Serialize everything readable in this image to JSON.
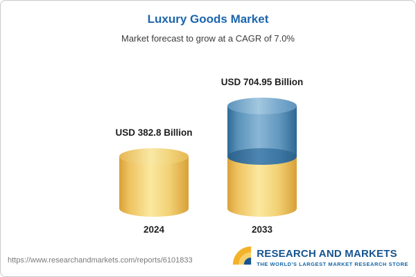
{
  "header": {
    "title": "Luxury Goods Market",
    "subtitle": "Market forecast to grow at a CAGR of 7.0%"
  },
  "chart_data": {
    "type": "bar",
    "style": "3d-cylinder",
    "title": "Luxury Goods Market",
    "subtitle": "Market forecast to grow at a CAGR of 7.0%",
    "unit": "USD Billion",
    "categories": [
      "2024",
      "2033"
    ],
    "values": [
      382.8,
      704.95
    ],
    "bars": [
      {
        "year": "2024",
        "label": "USD 382.8 Billion",
        "value": 382.8
      },
      {
        "year": "2033",
        "label": "USD 704.95 Billion",
        "value": 704.95,
        "stacked_base": 382.8
      }
    ],
    "legend_position": "none",
    "grid": false,
    "colors": {
      "base_gold": "#f2d276",
      "growth_blue": "#6298bf"
    },
    "notes": "2033 cylinder is stacked: gold lower portion equals the 2024 value, blue upper portion is the forecast growth to 704.95"
  },
  "footer": {
    "url": "https://www.researchandmarkets.com/reports/6101833",
    "logo_name": "RESEARCH AND MARKETS",
    "logo_tagline": "THE WORLD'S LARGEST MARKET RESEARCH STORE"
  }
}
